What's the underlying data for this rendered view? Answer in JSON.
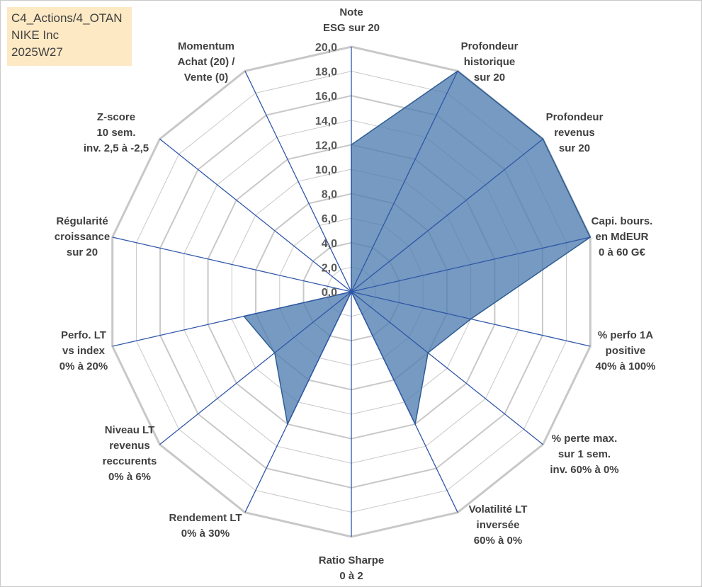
{
  "info": {
    "line1": "C4_Actions/4_OTAN",
    "line2": "NIKE Inc",
    "line3": "2025W27"
  },
  "chart_data": {
    "type": "radar",
    "title": "",
    "axes": [
      {
        "label": [
          "Note",
          "ESG sur 20"
        ],
        "value": 12.0
      },
      {
        "label": [
          "Profondeur",
          "historique",
          "sur 20"
        ],
        "value": 20.0
      },
      {
        "label": [
          "Profondeur",
          "revenus",
          "sur 20"
        ],
        "value": 20.0
      },
      {
        "label": [
          "Capi. bours.",
          "en MdEUR",
          "0 à 60 G€"
        ],
        "value": 20.0
      },
      {
        "label": [
          "% perfo 1A",
          "positive",
          "40% à 100%"
        ],
        "value": 10.0
      },
      {
        "label": [
          "% perte max.",
          "sur 1 sem.",
          "inv. 60% à 0%"
        ],
        "value": 8.0
      },
      {
        "label": [
          "Volatilité LT",
          "inversée",
          "60% à 0%"
        ],
        "value": 12.0
      },
      {
        "label": [
          "Ratio Sharpe",
          "0 à 2"
        ],
        "value": 0.0
      },
      {
        "label": [
          "Rendement LT",
          "0% à 30%"
        ],
        "value": 12.0
      },
      {
        "label": [
          "Niveau LT",
          "revenus",
          "reccurents",
          "0% à 6%"
        ],
        "value": 8.0
      },
      {
        "label": [
          "Perfo. LT",
          "vs index",
          "0% à 20%"
        ],
        "value": 9.0
      },
      {
        "label": [
          "Régularité",
          "croissance",
          "sur 20"
        ],
        "value": 0.0
      },
      {
        "label": [
          "Z-score",
          "10 sem.",
          "inv. 2,5 à -2,5"
        ],
        "value": 0.0
      },
      {
        "label": [
          "Momentum",
          "Achat (20) /",
          "Vente (0)"
        ],
        "value": 0.0
      }
    ],
    "r_ticks": [
      "0,0",
      "2,0",
      "4,0",
      "6,0",
      "8,0",
      "10,0",
      "12,0",
      "14,0",
      "16,0",
      "18,0",
      "20,0"
    ],
    "r_range": [
      0,
      20
    ],
    "grid": true,
    "legend": "none",
    "colors": {
      "fill": "#4f7db0",
      "stroke": "#2e5e93",
      "grid": "#c8c8c8",
      "spoke": "#2f57a8",
      "info_box": "#fde9c4"
    }
  }
}
